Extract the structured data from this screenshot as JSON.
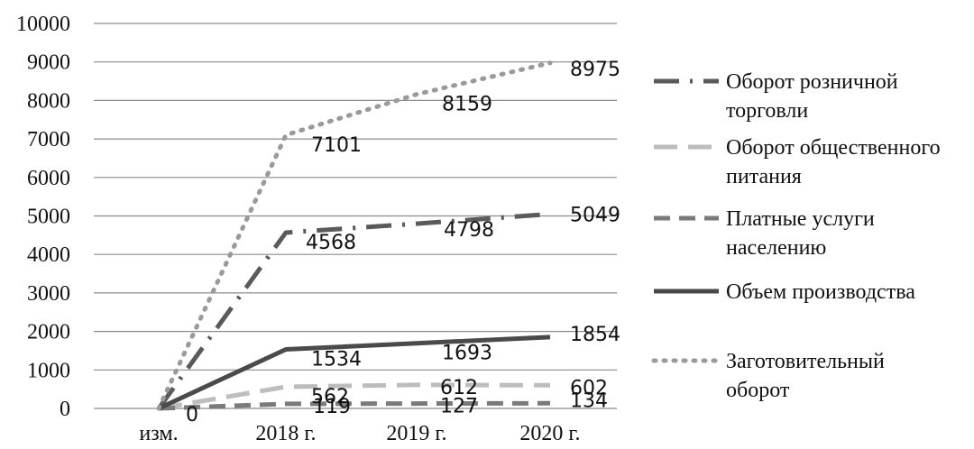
{
  "chart_data": {
    "type": "line",
    "categories": [
      "изм.",
      "2018 г.",
      "2019 г.",
      "2020 г."
    ],
    "ylim": [
      0,
      10000
    ],
    "yticks": [
      0,
      1000,
      2000,
      3000,
      4000,
      5000,
      6000,
      7000,
      8000,
      9000,
      10000
    ],
    "grid": "horizontal",
    "legend_position": "right",
    "series": [
      {
        "name": "Оборот розничной торговли",
        "name_lines": [
          "Оборот розничной",
          "торговли"
        ],
        "values": [
          0,
          4568,
          4798,
          5049
        ],
        "labels": [
          "",
          "4568",
          "4798",
          "5049"
        ],
        "style": "dash-dot",
        "color": "#5a5a5a"
      },
      {
        "name": "Оборот общественного питания",
        "name_lines": [
          "Оборот общественного",
          "питания"
        ],
        "values": [
          0,
          562,
          612,
          602
        ],
        "labels": [
          "",
          "562",
          "612",
          "602"
        ],
        "style": "long-dash",
        "color": "#bdbdbd"
      },
      {
        "name": "Платные услуги населению",
        "name_lines": [
          "Платные услуги",
          "населению"
        ],
        "values": [
          0,
          119,
          127,
          134
        ],
        "labels": [
          "0",
          "119",
          "127",
          "134"
        ],
        "style": "dash",
        "color": "#7a7a7a"
      },
      {
        "name": "Объем производства",
        "name_lines": [
          "Объем производства"
        ],
        "values": [
          0,
          1534,
          1693,
          1854
        ],
        "labels": [
          "",
          "1534",
          "1693",
          "1854"
        ],
        "style": "solid",
        "color": "#4a4a4a"
      },
      {
        "name": "Заготовительный оборот",
        "name_lines": [
          "Заготовительный",
          "оборот"
        ],
        "values": [
          0,
          7101,
          8159,
          8975
        ],
        "labels": [
          "",
          "7101",
          "8159",
          "8975"
        ],
        "style": "dot",
        "color": "#9a9a9a"
      }
    ]
  }
}
